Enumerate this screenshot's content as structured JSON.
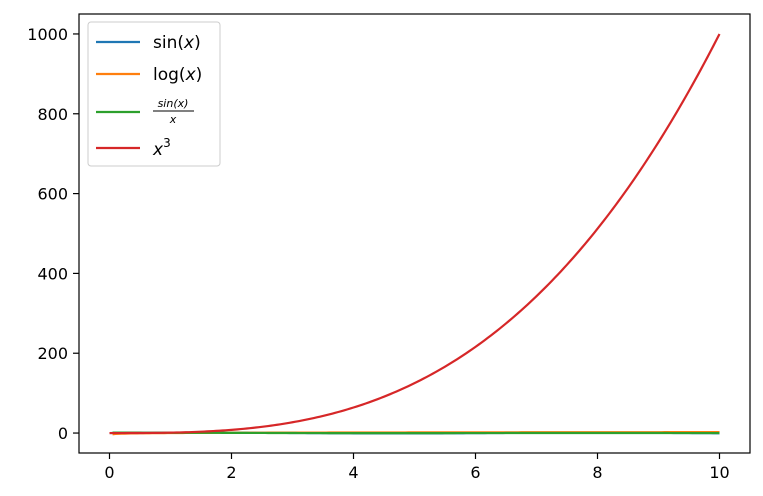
{
  "chart_data": {
    "type": "line",
    "title": "",
    "xlabel": "",
    "ylabel": "",
    "xlim": [
      -0.5,
      10.5
    ],
    "ylim": [
      -50,
      1050
    ],
    "x_ticks": [
      0,
      2,
      4,
      6,
      8,
      10
    ],
    "y_ticks": [
      0,
      200,
      400,
      600,
      800,
      1000
    ],
    "grid": false,
    "legend_position": "top-left",
    "series": [
      {
        "name": "sin(x)",
        "legend_prefix": "sin(",
        "legend_var": "x",
        "legend_suffix": ")",
        "color": "#1f77b4",
        "function": "sin(x)"
      },
      {
        "name": "log(x)",
        "legend_prefix": "log(",
        "legend_var": "x",
        "legend_suffix": ")",
        "color": "#ff7f0e",
        "function": "log(x)"
      },
      {
        "name": "sin(x)/x",
        "legend_numerator": "sin(x)",
        "legend_denominator": "x",
        "color": "#2ca02c",
        "function": "sin(x)/x"
      },
      {
        "name": "x^3",
        "legend_base": "x",
        "legend_exponent": "3",
        "color": "#d62728",
        "function": "x^3"
      }
    ],
    "x_range": [
      0,
      10
    ]
  }
}
